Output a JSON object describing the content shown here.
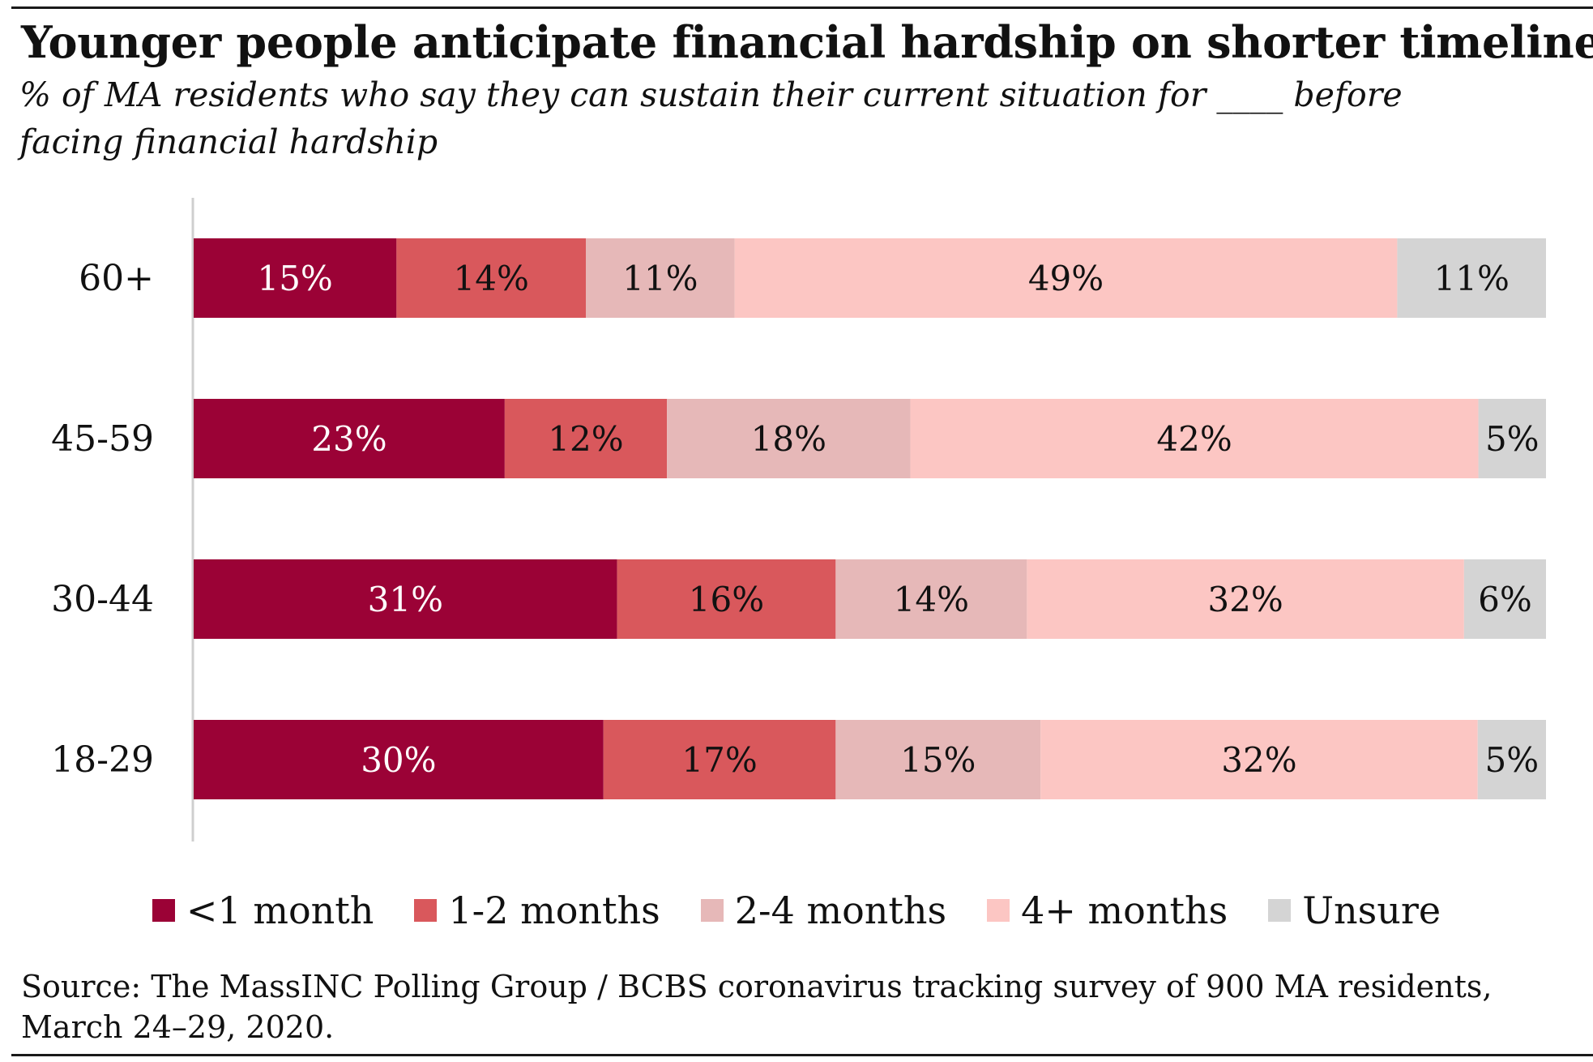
{
  "title": "Younger people anticipate financial hardship on shorter timeline",
  "subtitle": "% of MA residents who say they can sustain their current situation for ____ before facing financial hardship",
  "source": "Source: The MassINC Polling Group / BCBS coronavirus tracking survey of 900 MA residents, March 24–29, 2020.",
  "chart_data": {
    "type": "bar",
    "orientation": "horizontal",
    "stacked": true,
    "categories": [
      "60+",
      "45-59",
      "30-44",
      "18-29"
    ],
    "series": [
      {
        "name": "<1 month",
        "color": "#9b0236",
        "label_color": "#ffffff",
        "values": [
          15,
          23,
          31,
          30
        ]
      },
      {
        "name": "1-2 months",
        "color": "#d9585c",
        "label_color": "#111111",
        "values": [
          14,
          12,
          16,
          17
        ]
      },
      {
        "name": "2-4 months",
        "color": "#e6b8b8",
        "label_color": "#111111",
        "values": [
          11,
          18,
          14,
          15
        ]
      },
      {
        "name": "4+ months",
        "color": "#fcc6c3",
        "label_color": "#111111",
        "values": [
          49,
          42,
          32,
          32
        ]
      },
      {
        "name": "Unsure",
        "color": "#d4d4d4",
        "label_color": "#111111",
        "values": [
          11,
          5,
          6,
          5
        ]
      }
    ],
    "value_suffix": "%",
    "legend_position": "bottom",
    "grid": false
  }
}
